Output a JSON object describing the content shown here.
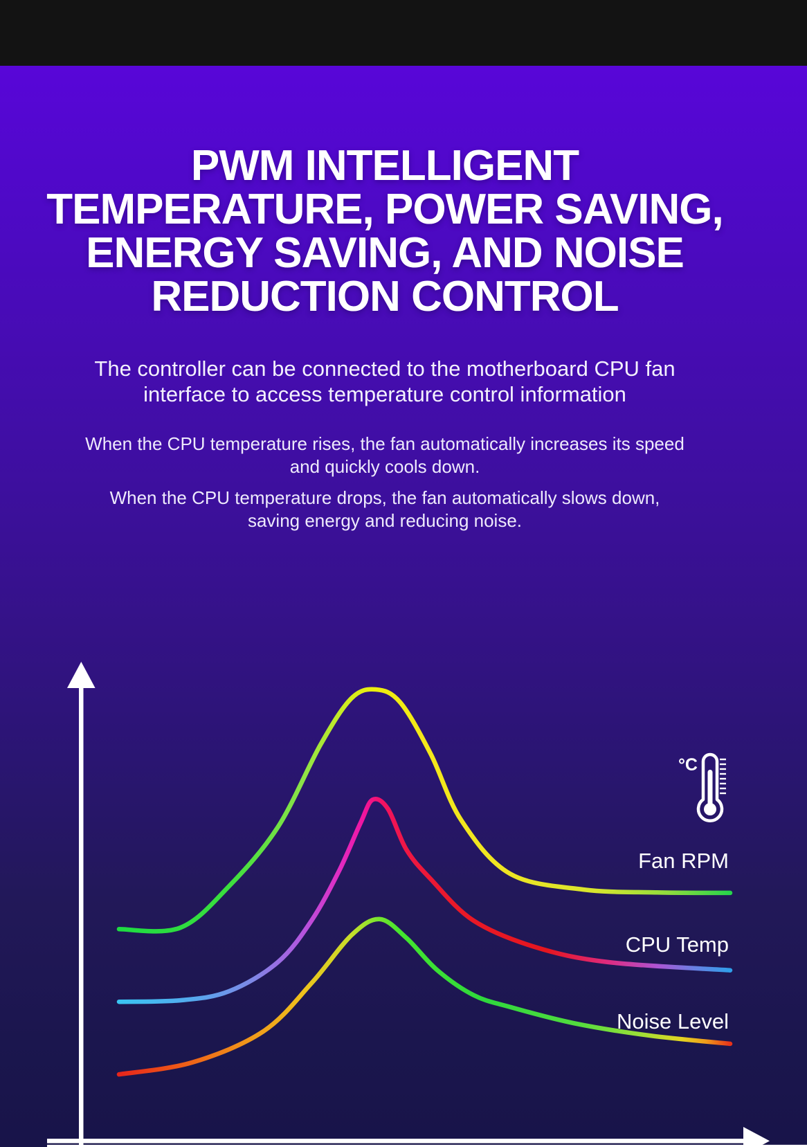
{
  "hero": {
    "title_lines": [
      "PWM INTELLIGENT",
      "TEMPERATURE, POWER SAVING,",
      "ENERGY SAVING, AND NOISE",
      "REDUCTION CONTROL"
    ],
    "subtitle_lines": [
      "The controller can be connected to the motherboard CPU fan",
      "interface to access temperature control information"
    ],
    "paragraph1_lines": [
      "When the CPU temperature rises, the fan automatically increases its speed",
      "and quickly cools down."
    ],
    "paragraph2_lines": [
      "When the CPU temperature drops, the fan automatically slows down,",
      "saving energy and reducing noise."
    ]
  },
  "chart_data": {
    "type": "line",
    "title": "",
    "xlabel": "",
    "ylabel": "",
    "grid": false,
    "axes": {
      "x_ticks": [],
      "y_ticks": [],
      "x_arrow": true,
      "y_arrow": true,
      "axis_color": "#ffffff"
    },
    "legend_position": "right",
    "temperature_icon_label": "°C",
    "x_range": [
      0,
      100
    ],
    "y_range": [
      0,
      100
    ],
    "series": [
      {
        "name": "Fan RPM",
        "points": [
          [
            0,
            44.3
          ],
          [
            10,
            44.6
          ],
          [
            18,
            53.3
          ],
          [
            26,
            65.7
          ],
          [
            33,
            83.0
          ],
          [
            38,
            92.6
          ],
          [
            42,
            94.5
          ],
          [
            46,
            91.8
          ],
          [
            51,
            81.0
          ],
          [
            56,
            67.1
          ],
          [
            64,
            55.9
          ],
          [
            76,
            52.6
          ],
          [
            88,
            52.0
          ],
          [
            100,
            51.9
          ]
        ],
        "gradient_stops": [
          [
            0,
            "#1edb42"
          ],
          [
            0.18,
            "#3bde3e"
          ],
          [
            0.3,
            "#8ce348"
          ],
          [
            0.38,
            "#d6ed1c"
          ],
          [
            0.42,
            "#edee0d"
          ],
          [
            0.5,
            "#f4e81a"
          ],
          [
            0.62,
            "#f0e522"
          ],
          [
            0.78,
            "#d8e52e"
          ],
          [
            0.9,
            "#8fdc3e"
          ],
          [
            1,
            "#27d44b"
          ]
        ]
      },
      {
        "name": "CPU Temp",
        "points": [
          [
            0,
            29.1
          ],
          [
            10,
            29.4
          ],
          [
            18,
            31.3
          ],
          [
            26,
            37.4
          ],
          [
            31.5,
            46.1
          ],
          [
            36,
            56.5
          ],
          [
            39.5,
            66.5
          ],
          [
            41.5,
            71.4
          ],
          [
            44,
            69.5
          ],
          [
            47,
            61.0
          ],
          [
            51,
            54.8
          ],
          [
            58,
            46.1
          ],
          [
            68,
            40.6
          ],
          [
            80,
            37.4
          ],
          [
            100,
            35.7
          ]
        ],
        "gradient_stops": [
          [
            0,
            "#3ac4f2"
          ],
          [
            0.12,
            "#55aaee"
          ],
          [
            0.22,
            "#7f87e6"
          ],
          [
            0.3,
            "#b455de"
          ],
          [
            0.36,
            "#e02cc4"
          ],
          [
            0.4,
            "#f015a0"
          ],
          [
            0.43,
            "#f31264"
          ],
          [
            0.47,
            "#ee1744"
          ],
          [
            0.55,
            "#e91928"
          ],
          [
            0.7,
            "#e4161f"
          ],
          [
            0.8,
            "#de2b80"
          ],
          [
            0.88,
            "#ae54d2"
          ],
          [
            0.94,
            "#6a7fe2"
          ],
          [
            1,
            "#2f9fea"
          ]
        ]
      },
      {
        "name": "Noise Level",
        "points": [
          [
            0,
            13.9
          ],
          [
            12,
            16.4
          ],
          [
            23.6,
            22.9
          ],
          [
            31.5,
            33.0
          ],
          [
            38,
            43.0
          ],
          [
            42.6,
            46.4
          ],
          [
            47,
            42.5
          ],
          [
            52,
            35.8
          ],
          [
            58,
            30.5
          ],
          [
            64,
            28.0
          ],
          [
            74.5,
            24.6
          ],
          [
            87,
            22.0
          ],
          [
            100,
            20.3
          ]
        ],
        "gradient_stops": [
          [
            0,
            "#e6251b"
          ],
          [
            0.1,
            "#ee5a17"
          ],
          [
            0.2,
            "#f0911a"
          ],
          [
            0.3,
            "#efc11c"
          ],
          [
            0.38,
            "#c8df2b"
          ],
          [
            0.42,
            "#7fe42f"
          ],
          [
            0.46,
            "#44e52e"
          ],
          [
            0.6,
            "#2fd83d"
          ],
          [
            0.75,
            "#52dc3e"
          ],
          [
            0.85,
            "#9adf38"
          ],
          [
            0.92,
            "#e3d522"
          ],
          [
            0.96,
            "#ef9c1b"
          ],
          [
            1,
            "#e8321a"
          ]
        ]
      }
    ]
  }
}
